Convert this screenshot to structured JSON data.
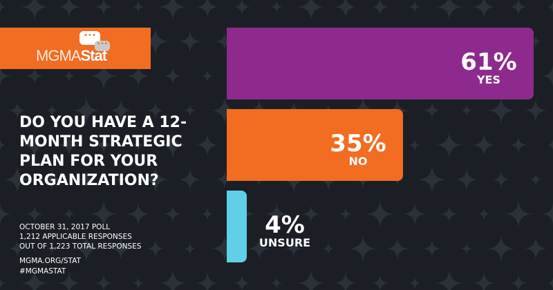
{
  "brand": {
    "logo_text_thin": "MGMA",
    "logo_text_bold": "Stat",
    "accent": "#f26c22"
  },
  "question": "DO YOU HAVE A 12-MONTH STRATEGIC PLAN FOR YOUR ORGANIZATION?",
  "meta": {
    "line1": "OCTOBER 31, 2017 POLL",
    "line2": "1,212 APPLICABLE RESPONSES",
    "line3": "OUT OF 1,223 TOTAL RESPONSES",
    "link": "MGMA.ORG/STAT",
    "hashtag": "#MGMASTAT"
  },
  "chart_data": {
    "type": "bar",
    "orientation": "horizontal",
    "categories": [
      "YES",
      "NO",
      "UNSURE"
    ],
    "values": [
      61,
      35,
      4
    ],
    "labels": [
      "61%",
      "35%",
      "4%"
    ],
    "colors": [
      "#8e2a8e",
      "#f26c22",
      "#5fd0e8"
    ],
    "unit": "%"
  }
}
